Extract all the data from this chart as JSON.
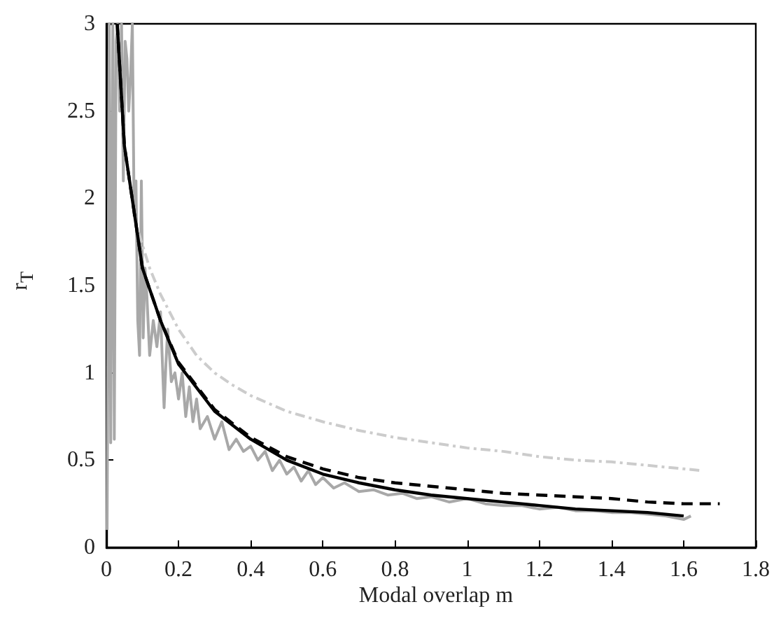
{
  "chart_data": {
    "type": "line",
    "xlabel": "Modal overlap m",
    "ylabel": "r$_{T}$",
    "xlim": [
      0,
      1.8
    ],
    "ylim": [
      0,
      3
    ],
    "xticks": [
      0,
      0.2,
      0.4,
      0.6,
      0.8,
      1,
      1.2,
      1.4,
      1.6,
      1.8
    ],
    "yticks": [
      0,
      0.5,
      1,
      1.5,
      2,
      2.5,
      3
    ],
    "grid": false,
    "marker": "none",
    "series": [
      {
        "color": "#a8a8a8",
        "line_style": "solid",
        "x": [
          0.002,
          0.008,
          0.012,
          0.018,
          0.022,
          0.027,
          0.032,
          0.037,
          0.042,
          0.047,
          0.052,
          0.057,
          0.062,
          0.067,
          0.072,
          0.077,
          0.082,
          0.087,
          0.092,
          0.097,
          0.102,
          0.107,
          0.112,
          0.12,
          0.13,
          0.14,
          0.15,
          0.16,
          0.165,
          0.17,
          0.18,
          0.19,
          0.2,
          0.21,
          0.22,
          0.23,
          0.24,
          0.25,
          0.26,
          0.28,
          0.3,
          0.32,
          0.34,
          0.36,
          0.38,
          0.4,
          0.42,
          0.44,
          0.46,
          0.48,
          0.5,
          0.52,
          0.54,
          0.56,
          0.58,
          0.6,
          0.63,
          0.66,
          0.7,
          0.74,
          0.78,
          0.82,
          0.86,
          0.9,
          0.95,
          1,
          1.05,
          1.1,
          1.15,
          1.2,
          1.25,
          1.3,
          1.35,
          1.4,
          1.45,
          1.5,
          1.55,
          1.6,
          1.62
        ],
        "values": [
          0.1,
          3,
          0.6,
          3,
          0.62,
          2.9,
          3,
          2.5,
          3,
          2.1,
          2.9,
          2.8,
          2.5,
          2.7,
          3,
          1.9,
          2.1,
          1.3,
          1.1,
          2.1,
          1.2,
          1.6,
          1.45,
          1.1,
          1.3,
          1.15,
          1.35,
          0.8,
          1.05,
          1.25,
          0.95,
          1.0,
          0.85,
          1.0,
          0.75,
          0.92,
          0.72,
          0.85,
          0.68,
          0.75,
          0.62,
          0.72,
          0.56,
          0.62,
          0.55,
          0.58,
          0.5,
          0.55,
          0.44,
          0.5,
          0.42,
          0.46,
          0.38,
          0.44,
          0.36,
          0.4,
          0.34,
          0.37,
          0.32,
          0.33,
          0.3,
          0.31,
          0.28,
          0.29,
          0.26,
          0.28,
          0.25,
          0.24,
          0.24,
          0.22,
          0.23,
          0.21,
          0.21,
          0.2,
          0.2,
          0.19,
          0.18,
          0.16,
          0.18
        ]
      },
      {
        "color": "#cccccc",
        "line_style": "dashdot",
        "x": [
          0.09,
          0.12,
          0.15,
          0.2,
          0.25,
          0.3,
          0.35,
          0.4,
          0.5,
          0.6,
          0.7,
          0.8,
          0.9,
          1.0,
          1.1,
          1.2,
          1.3,
          1.4,
          1.5,
          1.6,
          1.65
        ],
        "values": [
          1.8,
          1.6,
          1.45,
          1.25,
          1.1,
          1.0,
          0.93,
          0.87,
          0.78,
          0.72,
          0.67,
          0.63,
          0.6,
          0.57,
          0.55,
          0.52,
          0.5,
          0.49,
          0.47,
          0.45,
          0.44
        ]
      },
      {
        "color": "#000000",
        "line_style": "dashed",
        "x": [
          0.03,
          0.05,
          0.1,
          0.15,
          0.2,
          0.3,
          0.4,
          0.5,
          0.6,
          0.7,
          0.8,
          0.9,
          1.0,
          1.1,
          1.2,
          1.3,
          1.4,
          1.5,
          1.6,
          1.7
        ],
        "values": [
          3,
          2.3,
          1.6,
          1.3,
          1.06,
          0.79,
          0.63,
          0.52,
          0.45,
          0.4,
          0.37,
          0.35,
          0.33,
          0.31,
          0.3,
          0.29,
          0.28,
          0.26,
          0.25,
          0.25
        ]
      },
      {
        "color": "#000000",
        "line_style": "solid",
        "x": [
          0.03,
          0.05,
          0.1,
          0.15,
          0.2,
          0.3,
          0.4,
          0.5,
          0.6,
          0.7,
          0.8,
          0.9,
          1.0,
          1.1,
          1.2,
          1.3,
          1.4,
          1.5,
          1.6
        ],
        "values": [
          3,
          2.3,
          1.6,
          1.3,
          1.05,
          0.78,
          0.62,
          0.5,
          0.42,
          0.37,
          0.33,
          0.3,
          0.28,
          0.26,
          0.24,
          0.22,
          0.21,
          0.2,
          0.18
        ]
      }
    ]
  }
}
